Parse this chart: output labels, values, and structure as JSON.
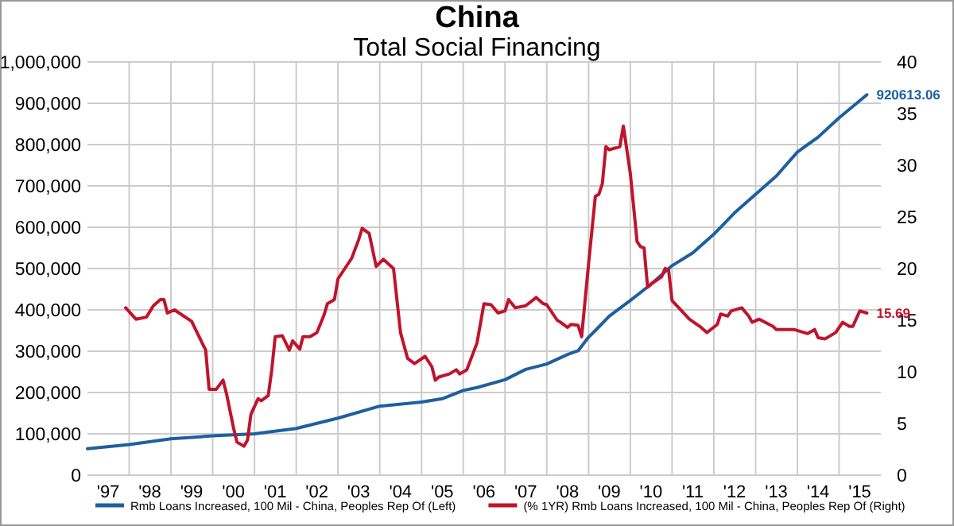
{
  "chart_data": {
    "type": "line",
    "title": "China",
    "subtitle": "Total Social Financing",
    "xlim": [
      "1997-01",
      "2016-01"
    ],
    "xticks": [
      {
        "value": "1997-07",
        "label": "'97"
      },
      {
        "value": "1998-01",
        "label": null
      },
      {
        "value": "1998-07",
        "label": "'98"
      },
      {
        "value": "1999-01",
        "label": null
      },
      {
        "value": "1999-07",
        "label": "'99"
      },
      {
        "value": "2000-01",
        "label": null
      },
      {
        "value": "2000-07",
        "label": "'00"
      },
      {
        "value": "2001-01",
        "label": null
      },
      {
        "value": "2001-07",
        "label": "'01"
      },
      {
        "value": "2002-01",
        "label": null
      },
      {
        "value": "2002-07",
        "label": "'02"
      },
      {
        "value": "2003-01",
        "label": null
      },
      {
        "value": "2003-07",
        "label": "'03"
      },
      {
        "value": "2004-01",
        "label": null
      },
      {
        "value": "2004-07",
        "label": "'04"
      },
      {
        "value": "2005-01",
        "label": null
      },
      {
        "value": "2005-07",
        "label": "'05"
      },
      {
        "value": "2006-01",
        "label": null
      },
      {
        "value": "2006-07",
        "label": "'06"
      },
      {
        "value": "2007-01",
        "label": null
      },
      {
        "value": "2007-07",
        "label": "'07"
      },
      {
        "value": "2008-01",
        "label": null
      },
      {
        "value": "2008-07",
        "label": "'08"
      },
      {
        "value": "2009-01",
        "label": null
      },
      {
        "value": "2009-07",
        "label": "'09"
      },
      {
        "value": "2010-01",
        "label": null
      },
      {
        "value": "2010-07",
        "label": "'10"
      },
      {
        "value": "2011-01",
        "label": null
      },
      {
        "value": "2011-07",
        "label": "'11"
      },
      {
        "value": "2012-01",
        "label": null
      },
      {
        "value": "2012-07",
        "label": "'12"
      },
      {
        "value": "2013-01",
        "label": null
      },
      {
        "value": "2013-07",
        "label": "'13"
      },
      {
        "value": "2014-01",
        "label": null
      },
      {
        "value": "2014-07",
        "label": "'14"
      },
      {
        "value": "2015-01",
        "label": null
      },
      {
        "value": "2015-07",
        "label": "'15"
      }
    ],
    "ylim": [
      0,
      1000000
    ],
    "yticks": [
      {
        "value": 0,
        "label": "0"
      },
      {
        "value": 100000,
        "label": "100,000"
      },
      {
        "value": 200000,
        "label": "200,000"
      },
      {
        "value": 300000,
        "label": "300,000"
      },
      {
        "value": 400000,
        "label": "400,000"
      },
      {
        "value": 500000,
        "label": "500,000"
      },
      {
        "value": 600000,
        "label": "600,000"
      },
      {
        "value": 700000,
        "label": "700,000"
      },
      {
        "value": 800000,
        "label": "800,000"
      },
      {
        "value": 900000,
        "label": "900,000"
      },
      {
        "value": 1000000,
        "label": "1,000,000"
      }
    ],
    "y2lim": [
      0,
      40
    ],
    "y2ticks": [
      0,
      5,
      10,
      15,
      20,
      25,
      30,
      35,
      40
    ],
    "grid": true,
    "legend": "bottom",
    "line_style": "solid",
    "marker": "none",
    "series": [
      {
        "name": "Rmb Loans Increased, 100 Mil - China, Peoples Rep Of  (Left)",
        "color": "#1f5f9e",
        "x": [
          "1997-01",
          "1998-01",
          "1999-01",
          "2000-01",
          "2001-01",
          "2002-01",
          "2003-01",
          "2004-01",
          "2005-01",
          "2005-07",
          "2006-01",
          "2006-05",
          "2007-01",
          "2007-07",
          "2008-01",
          "2008-07",
          "2008-10",
          "2009-01",
          "2009-03",
          "2009-07",
          "2010-01",
          "2010-07",
          "2011-01",
          "2011-07",
          "2012-01",
          "2012-07",
          "2013-01",
          "2013-07",
          "2014-01",
          "2014-07",
          "2015-01",
          "2015-09"
        ],
        "values": [
          64000,
          74000,
          88000,
          95000,
          100000,
          113000,
          138000,
          167000,
          177000,
          185000,
          205000,
          212000,
          231000,
          256000,
          269000,
          292000,
          301000,
          334000,
          350000,
          385000,
          423000,
          462000,
          507000,
          538000,
          583000,
          635000,
          680000,
          724000,
          782000,
          818000,
          865000,
          920613.06
        ]
      },
      {
        "name": "(% 1YR) Rmb Loans Increased, 100 Mil - China, Peoples Rep Of  (Right)",
        "color": "#c0142c",
        "axis": "y2",
        "x": [
          "1997-12",
          "1998-03",
          "1998-06",
          "1998-08",
          "1998-10",
          "1998-11",
          "1998-12",
          "1999-02",
          "1999-07",
          "1999-10",
          "1999-11",
          "1999-12",
          "2000-02",
          "2000-04",
          "2000-05",
          "2000-07",
          "2000-08",
          "2000-10",
          "2000-11",
          "2000-12",
          "2001-02",
          "2001-03",
          "2001-05",
          "2001-06",
          "2001-07",
          "2001-09",
          "2001-11",
          "2001-12",
          "2002-02",
          "2002-03",
          "2002-05",
          "2002-07",
          "2002-09",
          "2002-10",
          "2002-12",
          "2003-01",
          "2003-05",
          "2003-07",
          "2003-08",
          "2003-10",
          "2003-12",
          "2004-02",
          "2004-05",
          "2004-07",
          "2004-09",
          "2004-11",
          "2005-02",
          "2005-04",
          "2005-05",
          "2005-06",
          "2005-09",
          "2005-11",
          "2005-12",
          "2006-02",
          "2006-05",
          "2006-07",
          "2006-09",
          "2006-11",
          "2007-01",
          "2007-02",
          "2007-04",
          "2007-07",
          "2007-10",
          "2007-12",
          "2008-01",
          "2008-04",
          "2008-05",
          "2008-07",
          "2008-08",
          "2008-10",
          "2008-11",
          "2009-01",
          "2009-03",
          "2009-04",
          "2009-05",
          "2009-06",
          "2009-07",
          "2009-10",
          "2009-11",
          "2010-01",
          "2010-03",
          "2010-04",
          "2010-05",
          "2010-06",
          "2010-07",
          "2010-10",
          "2010-11",
          "2010-12",
          "2011-01",
          "2011-03",
          "2011-06",
          "2011-09",
          "2011-11",
          "2012-02",
          "2012-03",
          "2012-05",
          "2012-06",
          "2012-09",
          "2012-11",
          "2012-12",
          "2013-02",
          "2013-06",
          "2013-07",
          "2013-12",
          "2014-04",
          "2014-06",
          "2014-07",
          "2014-09",
          "2014-12",
          "2015-02",
          "2015-04",
          "2015-05",
          "2015-07",
          "2015-09"
        ],
        "values": [
          16.2,
          15.1,
          15.3,
          16.4,
          17,
          17,
          15.7,
          16,
          14.9,
          12.8,
          12.1,
          8.3,
          8.3,
          9.2,
          7.9,
          4.6,
          3.2,
          2.8,
          3.4,
          5.9,
          7.4,
          7.2,
          7.7,
          10.2,
          13.4,
          13.5,
          12.1,
          13,
          12.2,
          13.4,
          13.4,
          13.8,
          15.5,
          16.6,
          17,
          19,
          21,
          22.8,
          23.9,
          23.4,
          20.2,
          20.9,
          20,
          13.8,
          11.3,
          10.8,
          11.5,
          10.5,
          9.2,
          9.5,
          9.8,
          10.2,
          9.8,
          10.2,
          12.8,
          16.6,
          16.5,
          15.7,
          15.9,
          17,
          16.2,
          16.4,
          17.2,
          16.6,
          16.5,
          15,
          14.8,
          14.3,
          14.6,
          14.5,
          13.4,
          20.5,
          27,
          27.2,
          28.2,
          31.8,
          31.5,
          31.8,
          33.8,
          29.2,
          22.6,
          22.1,
          22,
          18.2,
          18.5,
          19.2,
          20,
          19.9,
          16.9,
          16.2,
          15.1,
          14.4,
          13.8,
          14.6,
          15.6,
          15.4,
          15.9,
          16.2,
          15.4,
          14.8,
          15.1,
          14.4,
          14.1,
          14.1,
          13.7,
          14.1,
          13.3,
          13.2,
          13.8,
          14.8,
          14.4,
          14.4,
          15.9,
          15.69
        ]
      }
    ],
    "annotations": [
      "920613.06",
      "15.69"
    ]
  }
}
